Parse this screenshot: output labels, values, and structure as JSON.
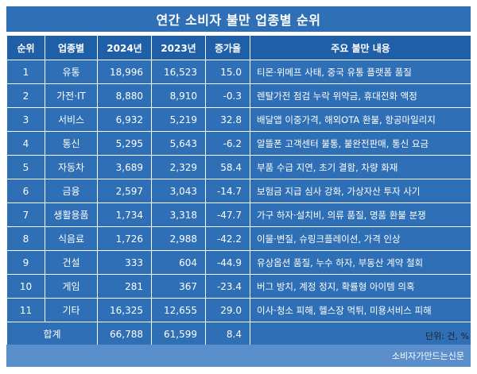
{
  "title": "연간 소비자 불만 업종별 순위",
  "headers": {
    "rank": "순위",
    "category": "업종별",
    "y2024": "2024년",
    "y2023": "2023년",
    "change": "증가율",
    "complaints": "주요 불만 내용"
  },
  "rows": [
    {
      "rank": "1",
      "category": "유통",
      "y2024": "18,996",
      "y2023": "16,523",
      "change": "15.0",
      "complaints": "티몬·위메프 사태, 중국 유통 플랫폼 품질"
    },
    {
      "rank": "2",
      "category": "가전·IT",
      "y2024": "8,880",
      "y2023": "8,910",
      "change": "-0.3",
      "complaints": "렌탈가전 점검 누락 위약금, 휴대전화 액정"
    },
    {
      "rank": "3",
      "category": "서비스",
      "y2024": "6,932",
      "y2023": "5,219",
      "change": "32.8",
      "complaints": "배달앱 이중가격, 해외OTA 환불, 항공마일리지"
    },
    {
      "rank": "4",
      "category": "통신",
      "y2024": "5,295",
      "y2023": "5,643",
      "change": "-6.2",
      "complaints": "알뜰폰 고객센터 불통, 불완전판매, 통신 요금"
    },
    {
      "rank": "5",
      "category": "자동차",
      "y2024": "3,689",
      "y2023": "2,329",
      "change": "58.4",
      "complaints": "부품 수급 지연, 초기 결함, 차량 화재"
    },
    {
      "rank": "6",
      "category": "금융",
      "y2024": "2,597",
      "y2023": "3,043",
      "change": "-14.7",
      "complaints": "보험금 지급 심사 강화, 가상자산 투자 사기"
    },
    {
      "rank": "7",
      "category": "생활용품",
      "y2024": "1,734",
      "y2023": "3,318",
      "change": "-47.7",
      "complaints": "가구 하자·설치비, 의류 품질, 명품 환불 분쟁"
    },
    {
      "rank": "8",
      "category": "식음료",
      "y2024": "1,726",
      "y2023": "2,988",
      "change": "-42.2",
      "complaints": "이물·변질, 슈링크플레이션, 가격 인상"
    },
    {
      "rank": "9",
      "category": "건설",
      "y2024": "333",
      "y2023": "604",
      "change": "-44.9",
      "complaints": "유상옵션 품질, 누수 하자, 부동산 계약 철회"
    },
    {
      "rank": "10",
      "category": "게임",
      "y2024": "281",
      "y2023": "367",
      "change": "-23.4",
      "complaints": "버그 방치, 계정 정지, 확률형 아이템 의혹"
    },
    {
      "rank": "11",
      "category": "기타",
      "y2024": "16,325",
      "y2023": "12,655",
      "change": "29.0",
      "complaints": "이사·청소 피해, 헬스장 먹튀, 미용서비스 피해"
    }
  ],
  "total": {
    "label": "합계",
    "y2024": "66,788",
    "y2023": "61,599",
    "change": "8.4"
  },
  "unit": "단위: 건, %",
  "source": "소비자가만드는신문",
  "colors": {
    "primary": "#2e6fb6",
    "header": "#1f5fa8",
    "footer": "#5a8fcc"
  }
}
